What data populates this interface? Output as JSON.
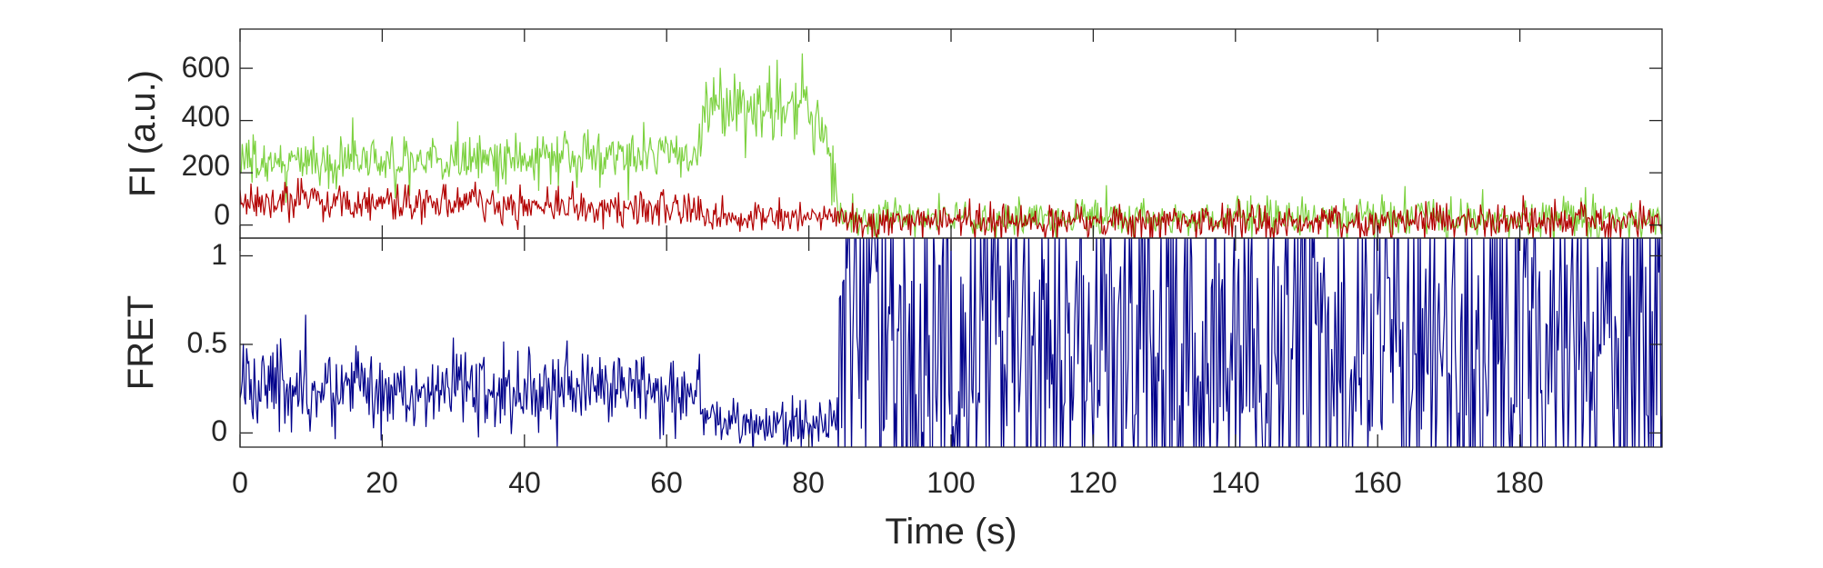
{
  "chart_data": [
    {
      "type": "line",
      "ylabel": "FI (a.u.)",
      "xlim": [
        0,
        200
      ],
      "ylim": [
        -50,
        750
      ],
      "yticks": [
        0,
        200,
        400,
        600
      ],
      "ytick_labels": [
        "0",
        "200",
        "400",
        "600"
      ],
      "grid": false,
      "series": [
        {
          "color": "#7cd13f",
          "segments": [
            {
              "x0": 0,
              "x1": 65,
              "mean": 250,
              "sd": 55,
              "drift": 35
            },
            {
              "x0": 65,
              "x1": 80,
              "mean": 450,
              "sd": 75,
              "drift": 0
            },
            {
              "x0": 80,
              "x1": 84,
              "mean": 320,
              "sd": 70,
              "drift": -220
            },
            {
              "x0": 84,
              "x1": 200,
              "mean": 25,
              "sd": 38,
              "drift": 0
            }
          ]
        },
        {
          "color": "#b20000",
          "segments": [
            {
              "x0": 0,
              "x1": 65,
              "mean": 80,
              "sd": 35,
              "drift": -20
            },
            {
              "x0": 65,
              "x1": 84,
              "mean": 25,
              "sd": 25,
              "drift": 0
            },
            {
              "x0": 84,
              "x1": 200,
              "mean": 15,
              "sd": 35,
              "drift": 0
            }
          ]
        }
      ]
    },
    {
      "type": "line",
      "xlabel": "Time (s)",
      "ylabel": "FRET",
      "xlim": [
        0,
        200
      ],
      "ylim": [
        -0.08,
        1.1
      ],
      "yticks": [
        0,
        0.5,
        1
      ],
      "ytick_labels": [
        "0",
        "0.5",
        "1"
      ],
      "xticks": [
        0,
        20,
        40,
        60,
        80,
        100,
        120,
        140,
        160,
        180
      ],
      "xtick_labels": [
        "0",
        "20",
        "40",
        "60",
        "80",
        "100",
        "120",
        "140",
        "160",
        "180"
      ],
      "grid": false,
      "series": [
        {
          "color": "#00008b",
          "segments": [
            {
              "x0": 0,
              "x1": 65,
              "mean": 0.25,
              "sd": 0.11,
              "type": "normal"
            },
            {
              "x0": 65,
              "x1": 84,
              "mean": 0.05,
              "sd": 0.07,
              "type": "normal"
            },
            {
              "x0": 84,
              "x1": 200,
              "mean": 0.5,
              "sd": 0.45,
              "type": "chaotic"
            }
          ]
        }
      ]
    }
  ]
}
